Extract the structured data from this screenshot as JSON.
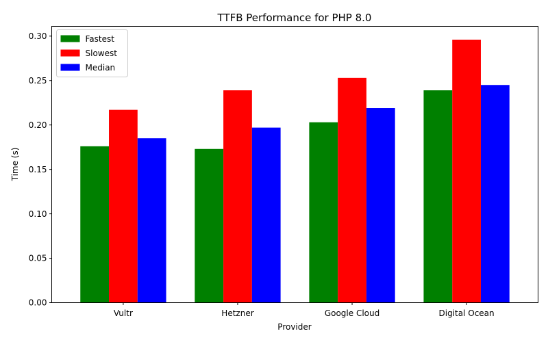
{
  "chart_data": {
    "type": "bar",
    "title": "TTFB Performance for PHP 8.0",
    "xlabel": "Provider",
    "ylabel": "Time (s)",
    "categories": [
      "Vultr",
      "Hetzner",
      "Google Cloud",
      "Digital Ocean"
    ],
    "series": [
      {
        "name": "Fastest",
        "color": "#008000",
        "values": [
          0.176,
          0.173,
          0.203,
          0.239
        ]
      },
      {
        "name": "Slowest",
        "color": "#ff0000",
        "values": [
          0.217,
          0.239,
          0.253,
          0.296
        ]
      },
      {
        "name": "Median",
        "color": "#0000ff",
        "values": [
          0.185,
          0.197,
          0.219,
          0.245
        ]
      }
    ],
    "ylim": [
      0,
      0.311
    ],
    "yticks": [
      "0.00",
      "0.05",
      "0.10",
      "0.15",
      "0.20",
      "0.25",
      "0.30"
    ],
    "grid": false,
    "legend_position": "top-left"
  }
}
